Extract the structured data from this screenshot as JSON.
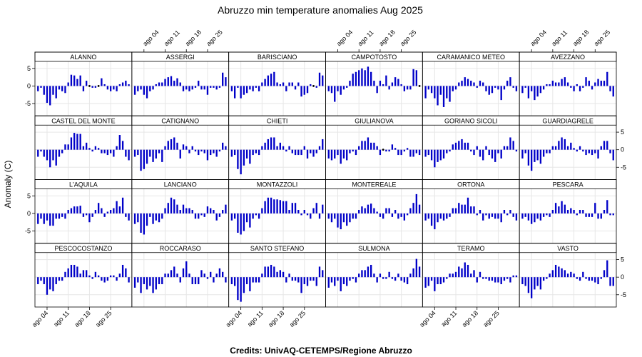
{
  "title": "Abruzzo min temperature anomalies Aug 2025",
  "credits": "Credits: UnivAQ-CETEMPS/Regione Abruzzo",
  "colors": {
    "bar": "#0000c8",
    "zero_point": "#000000",
    "grid": "#e6e6e6",
    "strip_bg": "#ffffff",
    "border": "#000000"
  },
  "chart_data": {
    "type": "bar",
    "ylabel": "Anomaly (C)",
    "ylim": [
      -8.5,
      7
    ],
    "y_ticks": [
      -5,
      0,
      5
    ],
    "y_tick_labels": [
      "-5",
      "0",
      "5"
    ],
    "x_days": 31,
    "x_ticks": [
      4,
      11,
      18,
      25
    ],
    "x_tick_labels": [
      "ago 04",
      "ago 11",
      "ago 18",
      "ago 25"
    ],
    "grid": true,
    "layout": {
      "columns": 6,
      "rows": 4
    },
    "panels": [
      {
        "name": "ALANNO",
        "values": [
          -1.5,
          -0.5,
          -2.5,
          -4.8,
          -5.5,
          -2.5,
          -3.5,
          -1.0,
          -1.5,
          -2.0,
          1.0,
          3.2,
          3.0,
          2.0,
          3.0,
          -1.5,
          1.5,
          0,
          -0.5,
          -0.5,
          0,
          2.2,
          0.5,
          -1.0,
          -1.5,
          -1.0,
          -1.5,
          0.5,
          1.0,
          1.5,
          0.5
        ]
      },
      {
        "name": "ASSERGI",
        "values": [
          -2.5,
          -1.5,
          -1.0,
          -2.5,
          -3.5,
          -1.5,
          -1.0,
          0.5,
          1.0,
          1.0,
          2.0,
          2.5,
          2.8,
          1.5,
          2.2,
          1.0,
          -1.5,
          -1.0,
          -1.5,
          -1.0,
          -0.5,
          1.5,
          -1.0,
          -1.0,
          -2.5,
          -0.5,
          -0.5,
          -1.0,
          -0.5,
          3.8,
          2.5
        ]
      },
      {
        "name": "BARISCIANO",
        "values": [
          -1.5,
          -3.5,
          -0.5,
          -3.5,
          -2.5,
          -2.0,
          -1.0,
          -1.5,
          -0.5,
          -1.5,
          1.0,
          2.0,
          3.0,
          3.5,
          4.0,
          1.0,
          0.5,
          1.0,
          -1.5,
          1.0,
          1.0,
          -1.0,
          1.0,
          -3.0,
          -2.5,
          -2.0,
          0.5,
          0,
          -0.5,
          3.8,
          3.0
        ]
      },
      {
        "name": "CAMPOTOSTO",
        "values": [
          -1.5,
          -2.0,
          -4.5,
          -1.5,
          -2.5,
          -1.0,
          -0.5,
          1.5,
          3.5,
          4.0,
          4.5,
          5.0,
          4.5,
          5.5,
          4.0,
          1.5,
          -2.0,
          1.5,
          0.5,
          3.0,
          -1.0,
          1.0,
          2.5,
          2.0,
          0.5,
          -1.5,
          -1.0,
          -1.0,
          4.8,
          4.5,
          0
        ]
      },
      {
        "name": "CARAMANICO METEO",
        "values": [
          -3.5,
          -1.0,
          -2.0,
          -3.5,
          -5.5,
          -2.5,
          -6.0,
          -3.5,
          -4.5,
          -1.5,
          -1.0,
          1.0,
          1.5,
          2.5,
          2.0,
          1.5,
          1.0,
          -0.5,
          1.5,
          1.0,
          -1.5,
          -2.5,
          -2.0,
          -0.5,
          -1.0,
          -4.0,
          -1.0,
          1.5,
          2.5,
          -0.5,
          -1.5
        ]
      },
      {
        "name": "AVEZZANO",
        "values": [
          -2.0,
          -0.5,
          -3.5,
          -1.5,
          -4.0,
          -3.0,
          -2.0,
          -1.0,
          0.5,
          0.5,
          1.5,
          1.0,
          1.0,
          2.0,
          2.5,
          1.0,
          -0.5,
          -1.5,
          0.5,
          -1.5,
          -0.5,
          2.5,
          1.5,
          -1.0,
          1.0,
          2.0,
          1.5,
          1.5,
          4.0,
          -1.5,
          -3.0
        ]
      },
      {
        "name": "CASTEL DEL MONTE",
        "values": [
          -2.0,
          -0.5,
          -2.0,
          -3.0,
          -5.0,
          -3.0,
          -4.5,
          -2.0,
          -1.0,
          1.5,
          1.5,
          3.5,
          4.8,
          4.5,
          4.5,
          1.0,
          2.0,
          0.5,
          -0.5,
          1.0,
          0.5,
          -1.0,
          -1.0,
          -1.5,
          -1.0,
          -2.0,
          1.0,
          4.2,
          2.5,
          -2.0,
          -3.0
        ]
      },
      {
        "name": "CATIGNANO",
        "values": [
          -2.0,
          -1.5,
          -6.0,
          -5.5,
          -4.0,
          -2.0,
          -3.5,
          -2.5,
          -1.0,
          -3.5,
          1.0,
          2.5,
          3.0,
          3.5,
          2.0,
          -2.5,
          1.5,
          1.0,
          -1.0,
          1.0,
          -0.5,
          -1.5,
          -0.5,
          -1.0,
          -3.0,
          -1.5,
          -1.0,
          -2.0,
          -0.5,
          2.0,
          1.0
        ]
      },
      {
        "name": "CHIETI",
        "values": [
          -2.0,
          -1.5,
          -5.5,
          -7.0,
          -4.5,
          -2.5,
          -4.0,
          -1.5,
          -1.0,
          -1.5,
          1.0,
          2.0,
          3.0,
          3.5,
          3.5,
          1.0,
          2.0,
          1.0,
          -0.5,
          1.0,
          -1.0,
          -1.5,
          -1.5,
          -1.5,
          1.0,
          -2.5,
          -1.0,
          -2.0,
          -1.0,
          1.0,
          3.0
        ]
      },
      {
        "name": "GIULIANOVA",
        "values": [
          -2.5,
          -3.0,
          -2.5,
          -1.5,
          -4.0,
          -2.5,
          -3.0,
          -1.0,
          -0.5,
          -1.5,
          1.0,
          2.5,
          2.5,
          3.5,
          2.0,
          2.0,
          1.0,
          -1.5,
          0,
          -0.5,
          -0.5,
          1.5,
          0.5,
          -1.5,
          -1.5,
          -0.5,
          0.5,
          -2.0,
          -2.0,
          -1.0,
          -1.5
        ]
      },
      {
        "name": "GORIANO SICOLI",
        "values": [
          -2.0,
          -1.5,
          -3.0,
          -5.0,
          -3.5,
          -3.0,
          -2.5,
          -1.0,
          -0.5,
          1.5,
          2.0,
          2.5,
          3.0,
          2.0,
          2.0,
          -0.5,
          -1.5,
          1.0,
          -2.0,
          -3.0,
          1.0,
          -1.5,
          -2.5,
          -3.5,
          -1.0,
          -2.5,
          1.0,
          1.0,
          3.5,
          2.5,
          -0.5
        ]
      },
      {
        "name": "GUARDIAGRELE",
        "values": [
          -2.5,
          -1.0,
          -4.5,
          -6.0,
          -3.5,
          -3.0,
          -4.0,
          -2.0,
          -1.0,
          -1.0,
          1.0,
          1.0,
          2.5,
          3.5,
          3.0,
          1.0,
          2.0,
          0.5,
          -0.5,
          1.0,
          -0.5,
          -1.5,
          -1.0,
          -1.5,
          -1.0,
          -2.5,
          1.0,
          2.5,
          2.5,
          -1.0,
          -3.0
        ]
      },
      {
        "name": "L'AQUILA",
        "values": [
          -3.0,
          -1.5,
          -3.0,
          -2.0,
          -3.5,
          -3.5,
          -1.5,
          -1.5,
          -1.0,
          -1.5,
          1.0,
          1.5,
          2.0,
          2.0,
          2.2,
          -1.0,
          -0.5,
          -2.5,
          -1.0,
          1.0,
          3.0,
          1.5,
          -1.0,
          0.5,
          1.0,
          1.5,
          3.5,
          2.0,
          4.5,
          -1.0,
          -2.0
        ]
      },
      {
        "name": "LANCIANO",
        "values": [
          -3.0,
          -2.5,
          -5.5,
          -6.0,
          -3.5,
          -1.0,
          -3.0,
          -2.0,
          -2.5,
          -1.5,
          1.5,
          3.0,
          4.5,
          4.0,
          2.5,
          1.0,
          2.5,
          1.5,
          1.5,
          1.0,
          -1.5,
          -1.5,
          -0.5,
          -1.0,
          2.0,
          1.5,
          1.0,
          -2.0,
          -1.0,
          1.0,
          2.5
        ]
      },
      {
        "name": "MONTAZZOLI",
        "values": [
          -2.0,
          -1.5,
          -5.5,
          -6.0,
          -5.0,
          -2.5,
          -4.0,
          -1.5,
          -0.5,
          -1.5,
          1.5,
          3.5,
          4.5,
          4.5,
          4.0,
          4.0,
          3.8,
          3.5,
          3.5,
          1.0,
          3.0,
          3.0,
          1.0,
          -0.5,
          1.0,
          -0.5,
          -1.5,
          1.5,
          3.0,
          -1.5,
          2.5
        ]
      },
      {
        "name": "MONTEREALE",
        "values": [
          -1.5,
          -2.5,
          -1.5,
          -4.0,
          -4.5,
          -2.5,
          -3.5,
          -2.5,
          -1.5,
          -1.5,
          1.0,
          2.0,
          1.5,
          2.5,
          2.8,
          1.5,
          0.5,
          -1.0,
          -1.5,
          1.5,
          1.5,
          -1.0,
          1.0,
          -1.5,
          -1.0,
          -2.0,
          -0.5,
          1.5,
          3.0,
          5.5,
          2.5
        ]
      },
      {
        "name": "ORTONA",
        "values": [
          -2.0,
          -1.5,
          -3.5,
          -4.5,
          -2.5,
          -1.5,
          -2.0,
          -1.5,
          -1.0,
          1.5,
          1.5,
          3.0,
          2.5,
          2.5,
          4.5,
          2.0,
          2.0,
          -0.5,
          1.0,
          -2.0,
          -0.5,
          -1.5,
          -1.0,
          -1.5,
          -1.5,
          -2.5,
          1.0,
          -0.5,
          1.0,
          -1.0,
          -2.0
        ]
      },
      {
        "name": "PESCARA",
        "values": [
          -1.5,
          -1.0,
          -2.0,
          -3.0,
          -2.5,
          -1.5,
          -2.0,
          -1.0,
          -0.5,
          -1.0,
          1.0,
          3.0,
          2.0,
          3.5,
          2.5,
          1.0,
          1.5,
          1.0,
          -0.5,
          1.0,
          1.0,
          -1.0,
          -1.0,
          -1.0,
          3.0,
          -1.5,
          -1.5,
          1.0,
          3.8,
          -0.5,
          -0.5
        ]
      },
      {
        "name": "PESCOCOSTANZO",
        "values": [
          -2.0,
          -1.0,
          -2.0,
          -5.0,
          -3.5,
          -4.0,
          -2.0,
          -1.0,
          -1.0,
          1.5,
          2.5,
          3.5,
          3.5,
          3.0,
          1.0,
          2.0,
          2.0,
          0.5,
          -0.5,
          1.5,
          0.5,
          -1.0,
          -1.5,
          -1.0,
          0.5,
          0.5,
          -1.0,
          1.0,
          3.5,
          2.5,
          -1.5
        ]
      },
      {
        "name": "ROCCARASO",
        "values": [
          -3.0,
          -1.5,
          -4.5,
          -2.0,
          -3.5,
          -2.5,
          -4.5,
          -3.5,
          -2.0,
          -2.0,
          1.0,
          1.0,
          2.0,
          3.0,
          1.0,
          -1.5,
          2.5,
          4.5,
          1.0,
          -2.0,
          -2.0,
          -2.0,
          2.0,
          1.0,
          -0.5,
          1.5,
          -1.5,
          1.0,
          2.5,
          1.5,
          -1.5
        ]
      },
      {
        "name": "SANTO STEFANO",
        "values": [
          -2.0,
          -2.5,
          -6.5,
          -7.0,
          -4.5,
          -2.0,
          -4.0,
          -1.5,
          -1.5,
          -1.5,
          1.0,
          3.0,
          3.0,
          3.5,
          3.0,
          1.5,
          2.0,
          1.5,
          -1.5,
          1.0,
          -1.0,
          -1.0,
          -1.5,
          -4.5,
          -2.0,
          -2.5,
          -1.0,
          -1.0,
          -2.5,
          3.0,
          2.0
        ]
      },
      {
        "name": "SULMONA",
        "values": [
          -3.0,
          -1.5,
          -2.5,
          -1.0,
          -4.0,
          -2.0,
          -2.5,
          -1.0,
          -0.5,
          -1.5,
          1.0,
          2.0,
          2.0,
          3.0,
          3.5,
          1.0,
          -1.5,
          1.0,
          -0.5,
          -0.5,
          1.5,
          -0.5,
          -1.0,
          1.0,
          -1.0,
          -1.5,
          -2.0,
          1.0,
          2.5,
          5.2,
          3.0
        ]
      },
      {
        "name": "TERAMO",
        "values": [
          -3.0,
          -2.5,
          -1.0,
          -4.0,
          -2.0,
          -2.0,
          -1.5,
          -0.5,
          1.0,
          1.0,
          1.5,
          3.0,
          2.5,
          4.2,
          3.5,
          1.0,
          2.0,
          -1.5,
          1.5,
          -0.5,
          -0.5,
          -1.0,
          -1.0,
          -1.5,
          -1.5,
          -2.0,
          -1.0,
          -0.5,
          -1.5,
          0.5,
          0.5
        ]
      },
      {
        "name": "VASTO",
        "values": [
          -2.0,
          -2.5,
          -4.5,
          -6.0,
          -3.5,
          -2.5,
          -3.5,
          -1.0,
          -0.5,
          1.0,
          2.0,
          3.5,
          3.0,
          2.5,
          2.0,
          1.0,
          1.5,
          1.0,
          -0.5,
          -1.0,
          1.5,
          -0.5,
          -1.0,
          -1.0,
          -1.5,
          -2.0,
          -0.5,
          2.0,
          4.8,
          -2.5,
          -2.5
        ]
      }
    ]
  }
}
